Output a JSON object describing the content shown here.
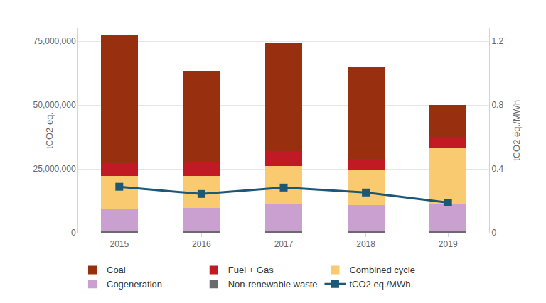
{
  "chart_data": {
    "type": "bar",
    "stacked": true,
    "grid": true,
    "legend": "bottom",
    "categories": [
      "2015",
      "2016",
      "2017",
      "2018",
      "2019"
    ],
    "ylabel": "tCO2 eq.",
    "y2label": "tCO2 eq./MWh",
    "ylim": [
      0,
      80000000
    ],
    "yticks": [
      0,
      {
        "value": 25000000,
        "label": "25,000,000"
      },
      {
        "value": 50000000,
        "label": "50,000,000"
      },
      {
        "value": 75000000,
        "label": "75,000,000"
      }
    ],
    "y2lim": [
      0,
      1.28
    ],
    "y2ticks": [
      0,
      0.4,
      0.8,
      1.2
    ],
    "series": [
      {
        "name": "Non-renewable waste",
        "type": "bar",
        "color": "#6b6b6b",
        "values": [
          600000,
          600000,
          600000,
          600000,
          600000
        ]
      },
      {
        "name": "Cogeneration",
        "type": "bar",
        "color": "#c9a0d0",
        "values": [
          8900000,
          9200000,
          10600000,
          10300000,
          10900000
        ]
      },
      {
        "name": "Combined cycle",
        "type": "bar",
        "color": "#f9ca6f",
        "values": [
          12600000,
          12300000,
          14900000,
          13500000,
          21600000
        ]
      },
      {
        "name": "Fuel + Gas",
        "type": "bar",
        "color": "#c21a24",
        "values": [
          5100000,
          5600000,
          5800000,
          4500000,
          4400000
        ]
      },
      {
        "name": "Coal",
        "type": "bar",
        "color": "#98300f",
        "values": [
          50400000,
          35600000,
          42600000,
          35800000,
          12400000
        ]
      },
      {
        "name": "tCO2 eq./MWh",
        "type": "line",
        "axis": "y2",
        "marker": "square",
        "line_style": "solid",
        "color": "#1b5878",
        "values": [
          0.288,
          0.243,
          0.283,
          0.252,
          0.189
        ]
      }
    ]
  }
}
